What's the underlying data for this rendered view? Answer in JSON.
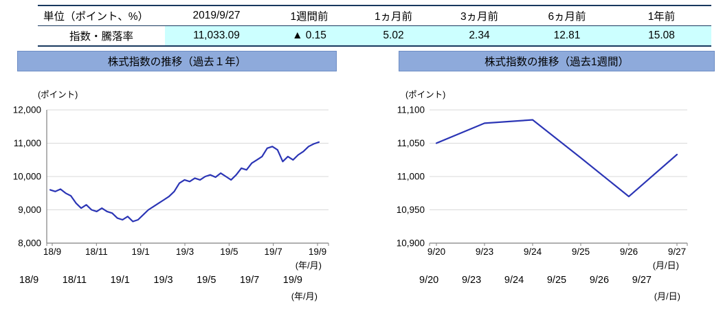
{
  "colors": {
    "header_bar_bg": "#8eaadb",
    "table_highlight": "#ccffff",
    "table_border": "#17375e",
    "grid_color": "#d9d9d9",
    "axis_color": "#808080"
  },
  "table": {
    "headers": [
      "単位（ポイント、%）",
      "2019/9/27",
      "1週間前",
      "1ヵ月前",
      "3ヵ月前",
      "6ヵ月前",
      "1年前"
    ],
    "row_label": "指数・騰落率",
    "values": [
      "11,033.09",
      "▲ 0.15",
      "5.02",
      "2.34",
      "12.81",
      "15.08"
    ]
  },
  "chart_data": [
    {
      "type": "line",
      "title": "株式指数の推移（過去１年）",
      "unit_label": "(ポイント)",
      "x_axis_label": "(年/月)",
      "x_tick_labels": [
        "18/9",
        "18/11",
        "19/1",
        "19/3",
        "19/5",
        "19/7",
        "19/9"
      ],
      "y_ticks": [
        8000,
        9000,
        10000,
        11000,
        12000
      ],
      "y_tick_labels": [
        "8,000",
        "9,000",
        "10,000",
        "11,000",
        "12,000"
      ],
      "ylim": [
        8000,
        12000
      ],
      "grid": true,
      "legend": "none",
      "line_color": "#2b35b5",
      "values": [
        9600,
        9550,
        9620,
        9500,
        9420,
        9200,
        9050,
        9150,
        9000,
        8950,
        9050,
        8950,
        8900,
        8750,
        8700,
        8800,
        8650,
        8700,
        8850,
        9000,
        9100,
        9200,
        9300,
        9400,
        9550,
        9800,
        9900,
        9850,
        9950,
        9900,
        10000,
        10050,
        9980,
        10100,
        10000,
        9900,
        10050,
        10250,
        10200,
        10400,
        10500,
        10600,
        10850,
        10900,
        10800,
        10450,
        10600,
        10500,
        10650,
        10750,
        10900,
        10980,
        11033
      ]
    },
    {
      "type": "line",
      "title": "株式指数の推移（過去1週間）",
      "unit_label": "(ポイント)",
      "x_axis_label": "(月/日)",
      "x_tick_labels": [
        "9/20",
        "9/23",
        "9/24",
        "9/25",
        "9/26",
        "9/27"
      ],
      "y_ticks": [
        10900,
        10950,
        11000,
        11050,
        11100
      ],
      "y_tick_labels": [
        "10,900",
        "10,950",
        "11,000",
        "11,050",
        "11,100"
      ],
      "ylim": [
        10900,
        11100
      ],
      "grid": true,
      "legend": "none",
      "line_color": "#2b35b5",
      "values": [
        11050,
        11080,
        11085,
        11028,
        10970,
        11033
      ]
    }
  ]
}
